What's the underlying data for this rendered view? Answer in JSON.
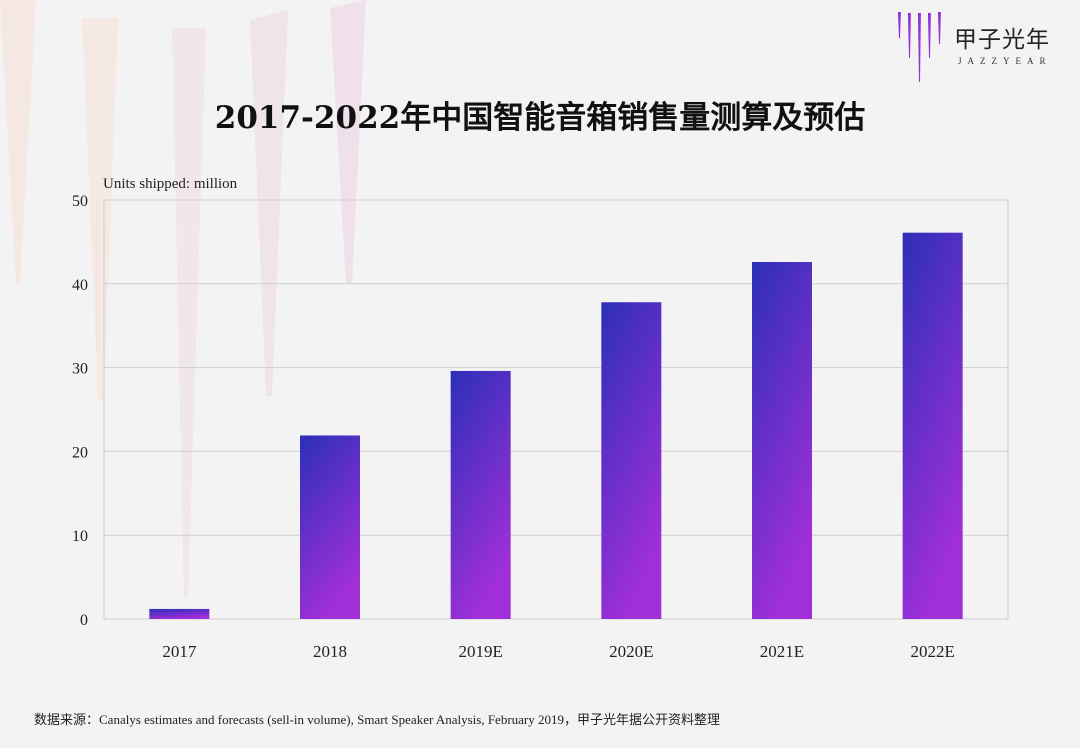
{
  "brand": {
    "name_cn": "甲子光年",
    "name_en": "JAZZYEAR",
    "accent": "#8a2be2"
  },
  "chart_data": {
    "type": "bar",
    "title": "2017-2022年中国智能音箱销售量测算及预估",
    "ylabel": "Units shipped: million",
    "xlabel": "",
    "categories": [
      "2017",
      "2018",
      "2019E",
      "2020E",
      "2021E",
      "2022E"
    ],
    "values": [
      1.2,
      21.9,
      29.6,
      37.8,
      42.6,
      46.1
    ],
    "ylim": [
      0,
      50
    ],
    "yticks": [
      0,
      10,
      20,
      30,
      40,
      50
    ],
    "grid": true,
    "bar_gradient": [
      "#2b2fb8",
      "#a02fd8"
    ]
  },
  "source": "数据来源：Canalys estimates and forecasts (sell-in volume), Smart Speaker Analysis, February 2019，甲子光年据公开资料整理"
}
